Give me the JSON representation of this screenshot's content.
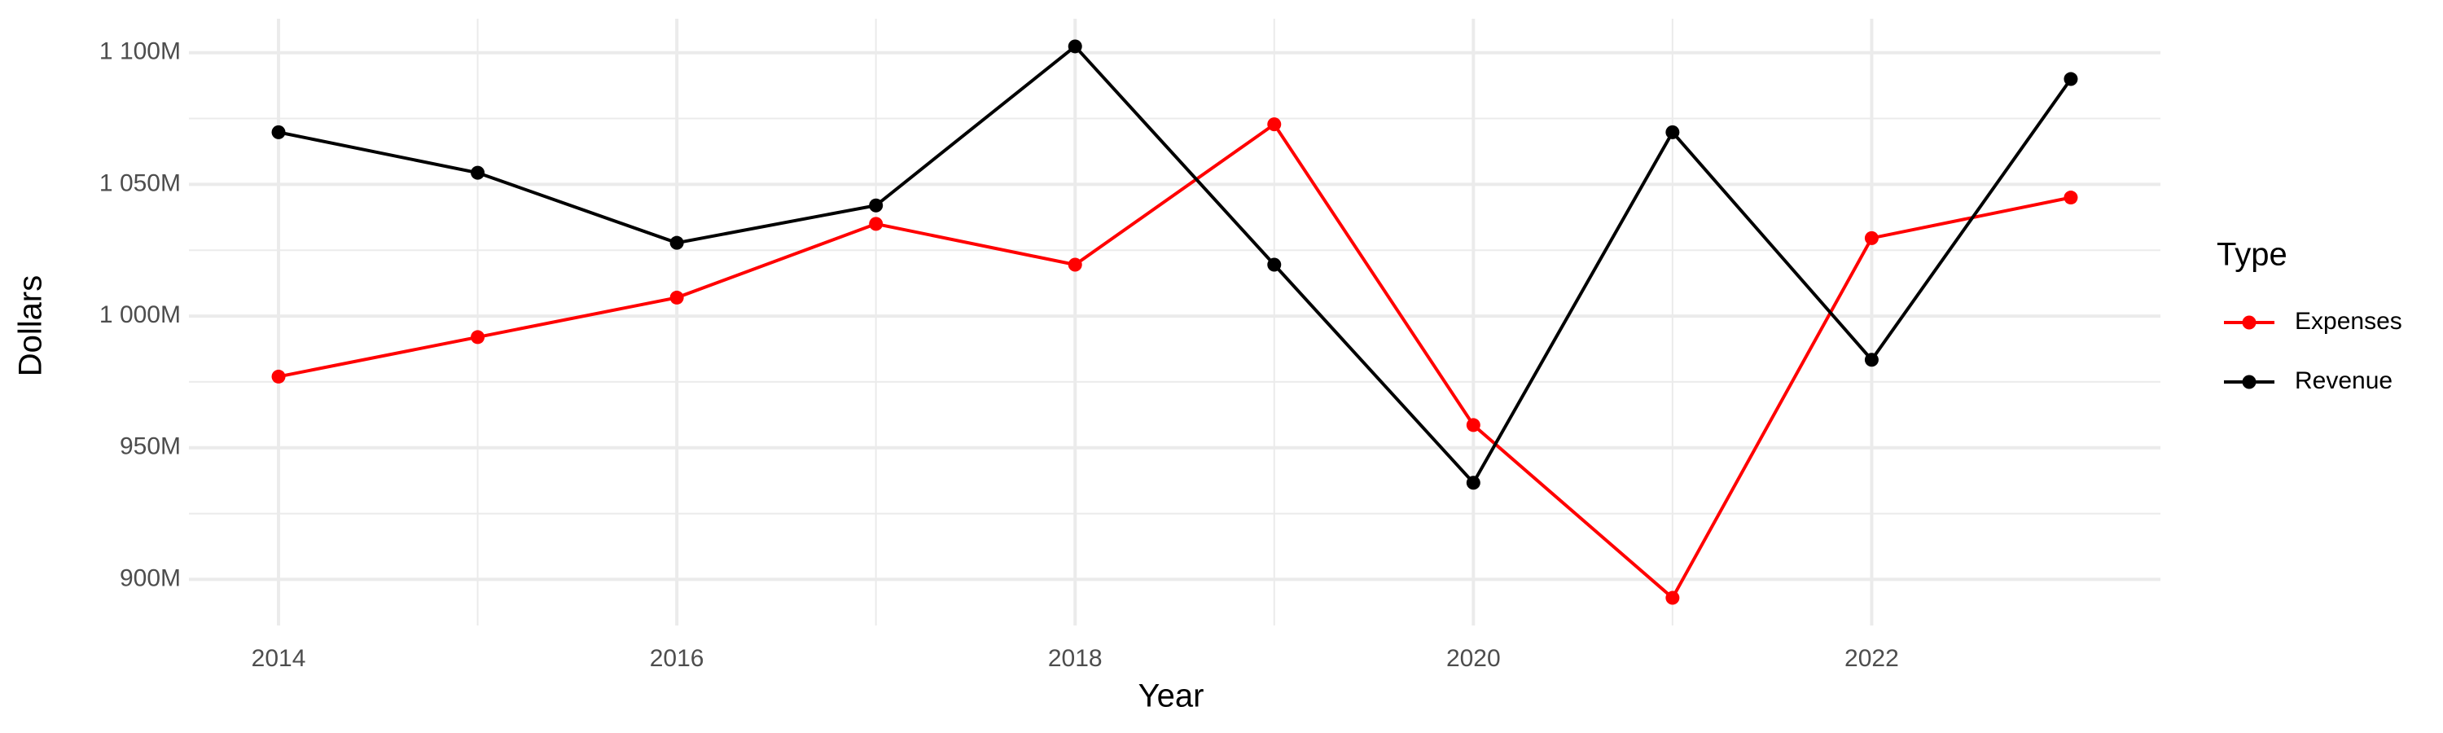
{
  "chart_data": {
    "type": "line",
    "x_label": "Year",
    "y_label": "Dollars",
    "legend_title": "Type",
    "legend_position": "right",
    "grid": true,
    "x": [
      2014,
      2015,
      2016,
      2017,
      2018,
      2019,
      2020,
      2021,
      2022,
      2023
    ],
    "series": [
      {
        "name": "Expenses",
        "color": "#ff0000",
        "values": [
          977,
          992,
          1007,
          1035,
          1019.5,
          1072.8,
          958.6,
          893,
          1029.6,
          1045
        ]
      },
      {
        "name": "Revenue",
        "color": "#000000",
        "values": [
          1069.8,
          1054.4,
          1027.8,
          1042,
          1102.4,
          1019.5,
          936.7,
          1069.8,
          983.4,
          1090
        ]
      }
    ],
    "xlim": [
      2013.55,
      2023.45
    ],
    "xticks": [
      2014,
      2016,
      2018,
      2020,
      2022
    ],
    "ylim": [
      882.5,
      1112.9
    ],
    "yticks": [
      {
        "value": 900,
        "label": "900M"
      },
      {
        "value": 950,
        "label": "950M"
      },
      {
        "value": 1000,
        "label": "1 000M"
      },
      {
        "value": 1050,
        "label": "1 050M"
      },
      {
        "value": 1100,
        "label": "1 100M"
      }
    ]
  }
}
